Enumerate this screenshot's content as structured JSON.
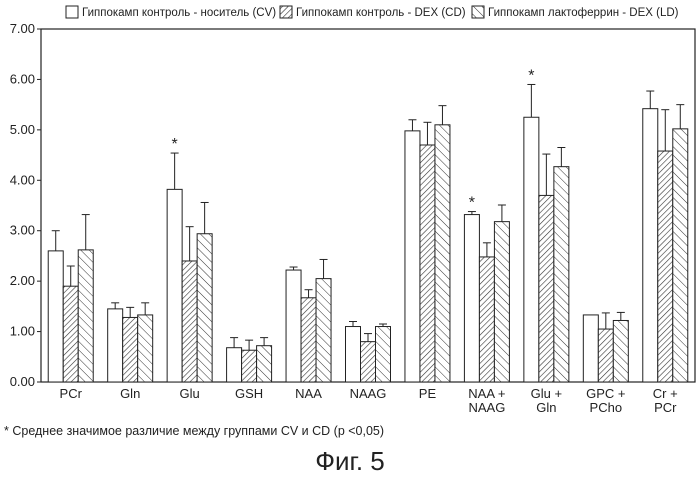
{
  "chart_data": {
    "type": "bar",
    "title": "",
    "xlabel": "",
    "ylabel": "",
    "ylim": [
      0,
      7
    ],
    "yticks": [
      "0.00",
      "1.00",
      "2.00",
      "3.00",
      "4.00",
      "5.00",
      "6.00",
      "7.00"
    ],
    "categories": [
      "PCr",
      "Gln",
      "Glu",
      "GSH",
      "NAA",
      "NAAG",
      "PE",
      "NAA +\nNAAG",
      "Glu +\nGln",
      "GPC +\nPCho",
      "Cr +\nPCr"
    ],
    "series": [
      {
        "name": "Гиппокамп контроль - носитель (CV)",
        "pattern": "plain",
        "values": [
          2.6,
          1.45,
          3.82,
          0.68,
          2.22,
          1.1,
          4.98,
          3.32,
          5.25,
          1.33,
          5.42
        ],
        "errors": [
          0.4,
          0.12,
          0.72,
          0.2,
          0.06,
          0.1,
          0.22,
          0.06,
          0.65,
          0.0,
          0.35
        ]
      },
      {
        "name": "Гиппокамп контроль - DEX (CD)",
        "pattern": "hatch-dense",
        "values": [
          1.9,
          1.28,
          2.4,
          0.63,
          1.67,
          0.8,
          4.7,
          2.48,
          3.7,
          1.05,
          4.58
        ],
        "errors": [
          0.4,
          0.2,
          0.68,
          0.2,
          0.16,
          0.16,
          0.45,
          0.28,
          0.82,
          0.32,
          0.82
        ]
      },
      {
        "name": "Гиппокамп лактоферрин - DEX (LD)",
        "pattern": "hatch-sparse",
        "values": [
          2.62,
          1.33,
          2.94,
          0.72,
          2.05,
          1.1,
          5.1,
          3.18,
          4.27,
          1.22,
          5.02
        ],
        "errors": [
          0.7,
          0.24,
          0.62,
          0.16,
          0.38,
          0.05,
          0.38,
          0.33,
          0.38,
          0.16,
          0.48
        ]
      }
    ],
    "significant_markers": [
      {
        "category": "Glu",
        "series": 0,
        "label": "*"
      },
      {
        "category": "NAA +\nNAAG",
        "series": 0,
        "label": "*"
      },
      {
        "category": "Glu +\nGln",
        "series": 0,
        "label": "*"
      }
    ]
  },
  "footnote": "* Среднее значимое различие между группами CV и CD (p <0,05)",
  "figure_caption": "Фиг. 5"
}
